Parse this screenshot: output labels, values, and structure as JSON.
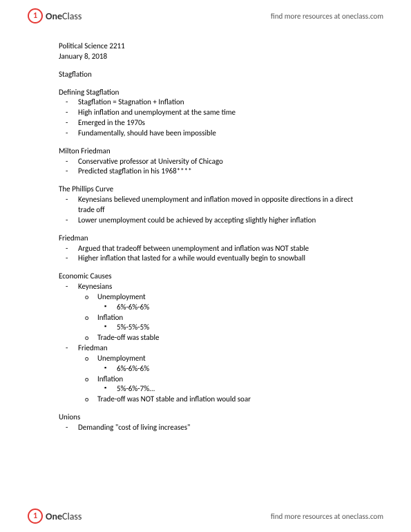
{
  "brand": {
    "logo_one": "One",
    "logo_class": "Class",
    "tagline": "find more resources at oneclass.com"
  },
  "course": {
    "title": "Political Science 2211",
    "date": "January 8, 2018"
  },
  "topic": "Stagflation",
  "sections": {
    "defining": {
      "heading": "Defining Stagflation",
      "items": [
        "Stagflation = Stagnation + Inflation",
        "High inflation and unemployment at the same time",
        "Emerged in the 1970s",
        "Fundamentally, should have been impossible"
      ]
    },
    "milton": {
      "heading": "Milton Friedman",
      "items": [
        "Conservative professor at University of Chicago",
        "Predicted stagflation in his 1968****"
      ]
    },
    "phillips": {
      "heading": "The Phillips Curve",
      "items": [
        "Keynesians believed unemployment and inflation moved in opposite directions in a direct trade off",
        "Lower unemployment could be achieved by accepting slightly higher inflation"
      ]
    },
    "friedman": {
      "heading": "Friedman",
      "items": [
        "Argued that tradeoff between unemployment and inflation was NOT stable",
        "Higher inflation that lasted for a while would eventually begin to snowball"
      ]
    },
    "economic": {
      "heading": "Economic Causes",
      "keynesians": {
        "label": "Keynesians",
        "unemployment": {
          "label": "Unemployment",
          "value": "6%-6%-6%"
        },
        "inflation": {
          "label": "Inflation",
          "value": "5%-5%-5%"
        },
        "tradeoff": "Trade-off was stable"
      },
      "friedman": {
        "label": "Friedman",
        "unemployment": {
          "label": "Unemployment",
          "value": "6%-6%-6%"
        },
        "inflation": {
          "label": "Inflation",
          "value": "5%-6%-7%..."
        },
        "tradeoff": "Trade-off was NOT stable and inflation would soar"
      }
    },
    "unions": {
      "heading": "Unions",
      "items": [
        "Demanding \"cost of living increases\""
      ]
    }
  }
}
